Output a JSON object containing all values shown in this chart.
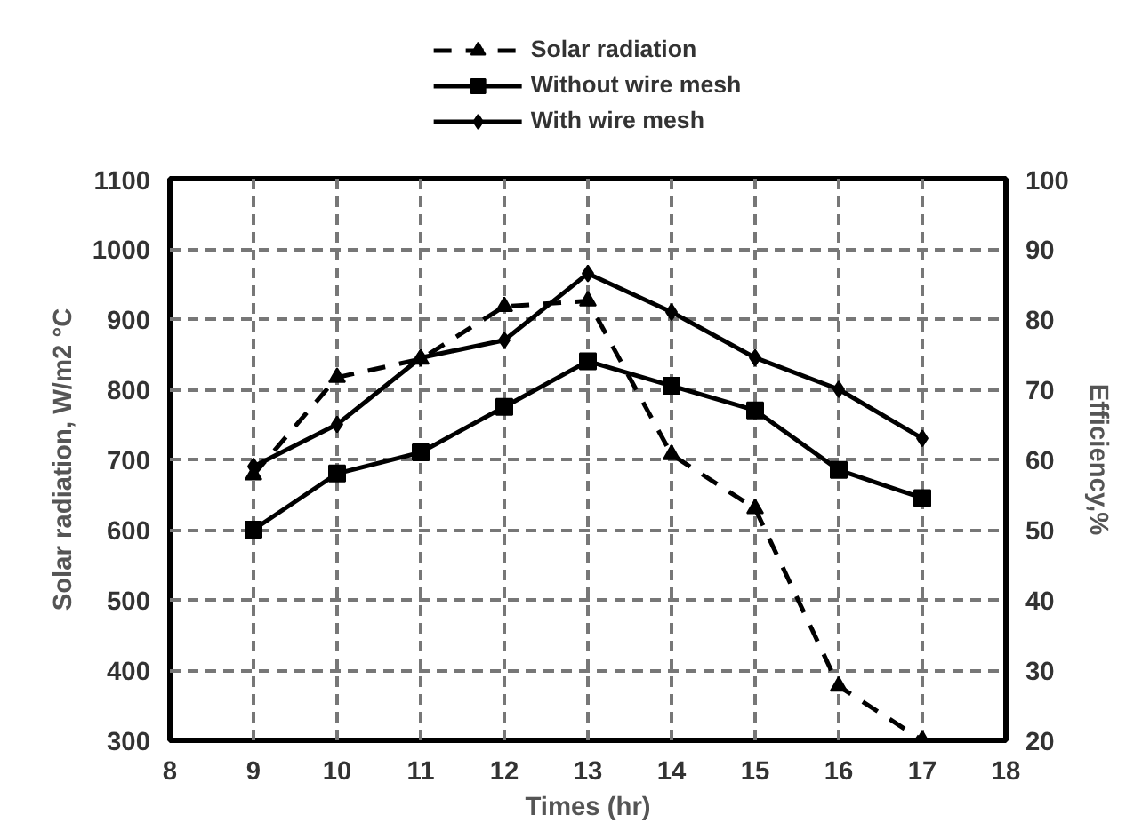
{
  "chart_data": {
    "type": "line",
    "xlabel": "Times (hr)",
    "ylabel": "Solar radiation, W/m2 °C",
    "y2label": "Efficiency,%",
    "x": [
      9,
      10,
      11,
      12,
      13,
      14,
      15,
      16,
      17
    ],
    "xlim": [
      8,
      18
    ],
    "xticks": [
      8,
      9,
      10,
      11,
      12,
      13,
      14,
      15,
      16,
      17,
      18
    ],
    "ylim": [
      300,
      1100
    ],
    "yticks": [
      300,
      400,
      500,
      600,
      700,
      800,
      900,
      1000,
      1100
    ],
    "y2lim": [
      20,
      100
    ],
    "y2ticks": [
      20,
      30,
      40,
      50,
      60,
      70,
      80,
      90,
      100
    ],
    "grid": true,
    "legend": "top",
    "series": [
      {
        "name": "Solar radiation",
        "color": "#000000",
        "marker": "triangle",
        "line_style": "dashed",
        "values": [
          678,
          817,
          843,
          918,
          926,
          707,
          630,
          377,
          300
        ]
      },
      {
        "name": "Without wire mesh",
        "color": "#000000",
        "marker": "square",
        "line_style": "solid",
        "axis": "y2",
        "values": [
          50,
          58,
          61,
          67.5,
          74,
          70.5,
          67,
          58.5,
          54.5
        ]
      },
      {
        "name": "With wire mesh",
        "color": "#000000",
        "marker": "diamond",
        "line_style": "solid",
        "axis": "y2",
        "values": [
          59,
          65,
          74.5,
          77,
          86.5,
          81,
          74.5,
          70,
          63
        ]
      }
    ]
  }
}
